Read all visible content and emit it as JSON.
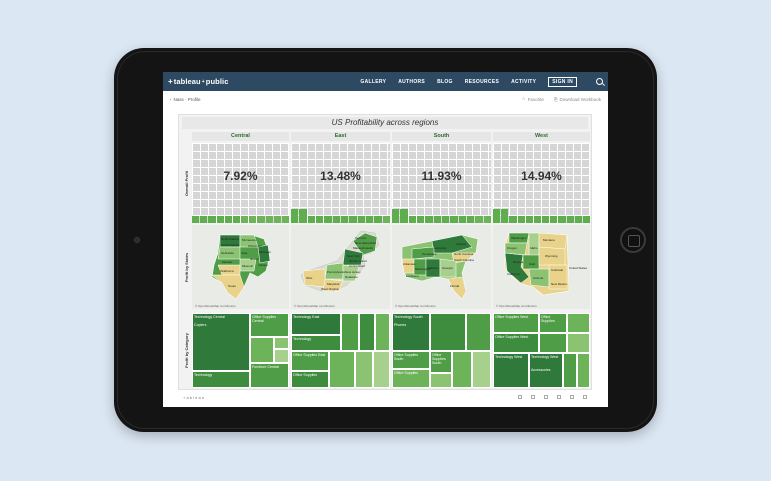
{
  "nav": {
    "logo": "tableau",
    "logo_suffix": "public",
    "links": [
      "GALLERY",
      "AUTHORS",
      "BLOG",
      "RESOURCES",
      "ACTIVITY"
    ],
    "signin": "SIGN IN"
  },
  "subheader": {
    "back": "Nass · Profile",
    "favorite": "Favorite",
    "download": "Download Workbook"
  },
  "dashboard": {
    "title": "US Profitability across regions",
    "row_labels": [
      "Overall Profit",
      "Profit by States",
      "Profit by Category"
    ],
    "regions": [
      {
        "name": "Central",
        "profit": "7.92%"
      },
      {
        "name": "East",
        "profit": "13.48%"
      },
      {
        "name": "South",
        "profit": "11.93%"
      },
      {
        "name": "West",
        "profit": "14.94%"
      }
    ],
    "map_credit": "© OpenStreetMap contributors",
    "map_labels": {
      "central": [
        "North Dakota",
        "South Dakota",
        "Minnesota",
        "Wisconsin",
        "Michigan",
        "Nebraska",
        "Iowa",
        "Illinois",
        "Indiana",
        "Kansas",
        "Missouri",
        "Oklahoma",
        "Texas"
      ],
      "east": [
        "Vermont",
        "New Hampshire",
        "Massachusetts",
        "New York",
        "Rhode Island",
        "Connecticut",
        "Ohio",
        "Pennsylvania",
        "New Jersey",
        "Delaware",
        "Maryland",
        "West Virginia"
      ],
      "south": [
        "Virginia",
        "Kentucky",
        "Tennessee",
        "North Carolina",
        "Arkansas",
        "South Carolina",
        "Mississippi",
        "Alabama",
        "Georgia",
        "Louisiana",
        "Florida"
      ],
      "west": [
        "Washington",
        "Oregon",
        "Montana",
        "Idaho",
        "Wyoming",
        "Nevada",
        "Utah",
        "Colorado",
        "California",
        "Arizona",
        "New Mexico",
        "United States"
      ]
    },
    "treemaps": {
      "central": [
        "Technology Central",
        "Copiers",
        "Office Supplies Central",
        "Technology",
        "Furniture Central"
      ],
      "east": [
        "Technology East",
        "Technology",
        "Office Supplies East",
        "Office Supplies"
      ],
      "south": [
        "Technology South",
        "Phones",
        "Office Supplies South",
        "Office Supplies South",
        "Office Supplies"
      ],
      "west": [
        "Office Supplies West",
        "Office Supplies",
        "Office Supplies West",
        "Technology West",
        "Technology West",
        "Copiers",
        "Accessories"
      ]
    }
  },
  "toolbar": {
    "brand": "+ a b l e a u"
  },
  "colors": {
    "navbar": "#2e4a62",
    "green_dark": "#2f7a3a",
    "green_mid": "#4f9d46",
    "green_light": "#8cc373",
    "yellow": "#e9d28a",
    "region_title": "#2d6b2d"
  },
  "chart_data": {
    "type": "bar",
    "categories": [
      "Central",
      "East",
      "South",
      "West"
    ],
    "values": [
      7.92,
      13.48,
      11.93,
      14.94
    ],
    "title": "US Profitability across regions",
    "xlabel": "",
    "ylabel": "Overall Profit"
  }
}
